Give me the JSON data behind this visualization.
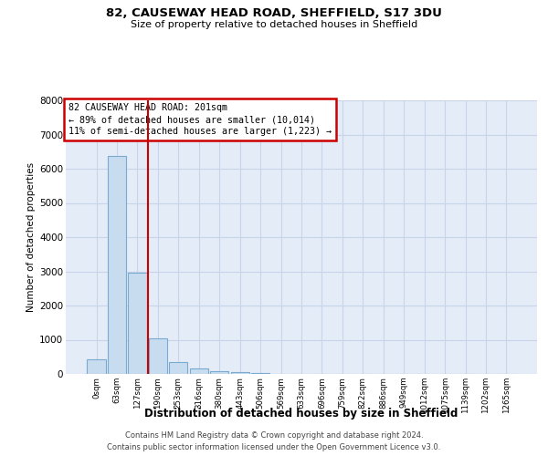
{
  "title1": "82, CAUSEWAY HEAD ROAD, SHEFFIELD, S17 3DU",
  "title2": "Size of property relative to detached houses in Sheffield",
  "xlabel": "Distribution of detached houses by size in Sheffield",
  "ylabel": "Number of detached properties",
  "bar_labels": [
    "0sqm",
    "63sqm",
    "127sqm",
    "190sqm",
    "253sqm",
    "316sqm",
    "380sqm",
    "443sqm",
    "506sqm",
    "569sqm",
    "633sqm",
    "696sqm",
    "759sqm",
    "822sqm",
    "886sqm",
    "949sqm",
    "1012sqm",
    "1075sqm",
    "1139sqm",
    "1202sqm",
    "1265sqm"
  ],
  "bar_values": [
    430,
    6380,
    2950,
    1050,
    340,
    170,
    85,
    45,
    20,
    8,
    4,
    2,
    1,
    1,
    0,
    0,
    0,
    0,
    0,
    0,
    0
  ],
  "bar_color": "#C8DCF0",
  "bar_edge_color": "#7AAAD0",
  "red_line_x": 2.5,
  "annotation_text": "82 CAUSEWAY HEAD ROAD: 201sqm\n← 89% of detached houses are smaller (10,014)\n11% of semi-detached houses are larger (1,223) →",
  "annotation_box_color": "#CC0000",
  "ylim": [
    0,
    8000
  ],
  "yticks": [
    0,
    1000,
    2000,
    3000,
    4000,
    5000,
    6000,
    7000,
    8000
  ],
  "grid_color": "#C8D4E8",
  "bg_color": "#E4ECF8",
  "footer_line1": "Contains HM Land Registry data © Crown copyright and database right 2024.",
  "footer_line2": "Contains public sector information licensed under the Open Government Licence v3.0."
}
